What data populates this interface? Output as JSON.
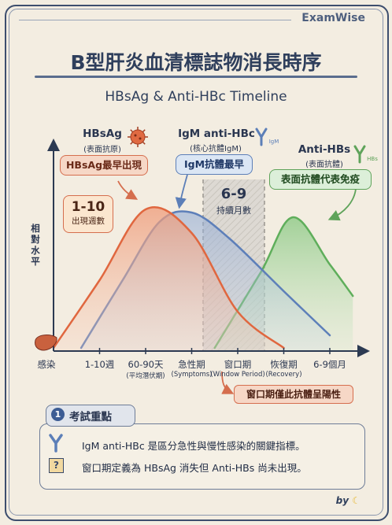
{
  "brand": "ExamWise",
  "title": "B型肝炎血清標誌物消長時序",
  "subtitle": "HBsAg & Anti-HBc Timeline",
  "markers": {
    "hbsag": {
      "name": "HBsAg",
      "desc": "(表面抗原)",
      "callout": "HBsAg最早出現"
    },
    "igm": {
      "name": "IgM anti-HBc",
      "desc": "(核心抗體IgM)",
      "callout": "IgM抗體最早",
      "icon_tag": "IgM"
    },
    "antihbs": {
      "name": "Anti-HBs",
      "desc": "(表面抗體)",
      "callout": "表面抗體代表免疫",
      "icon_tag": "HBs"
    }
  },
  "onset": {
    "range": "1-10",
    "text": "出現週數"
  },
  "window_duration": {
    "range": "6-9",
    "text": "持續月數"
  },
  "ylabel": "相對水平",
  "xticks": [
    {
      "label": "感染",
      "sub": ""
    },
    {
      "label": "1-10週",
      "sub": ""
    },
    {
      "label": "60-90天",
      "sub": "(平均潛伏期)"
    },
    {
      "label": "急性期",
      "sub": "(Symptoms)"
    },
    {
      "label": "窗口期",
      "sub": "(Window Period)"
    },
    {
      "label": "恢復期",
      "sub": "(Recovery)"
    },
    {
      "label": "6-9個月",
      "sub": ""
    }
  ],
  "window_note": "窗口期僅此抗體呈陽性",
  "exam": {
    "number": "1",
    "title": "考試重點",
    "points": [
      "IgM anti-HBc 是區分急性與慢性感染的關鍵指標。",
      "窗口期定義為 HBsAg 消失但 Anti-HBs 尚未出現。"
    ],
    "q_mark": "?"
  },
  "byline": "by",
  "colors": {
    "hbsag": "#e0673f",
    "igm": "#5d7fb9",
    "antihbs": "#5fae5b",
    "ink": "#2c3a52"
  },
  "chart_data": {
    "type": "area",
    "ylabel": "相對水平",
    "x_categories": [
      "感染",
      "1-10週",
      "60-90天",
      "急性期",
      "窗口期",
      "恢復期",
      "6-9個月"
    ],
    "series": [
      {
        "name": "HBsAg",
        "x": [
          0,
          1,
          2,
          3,
          4,
          5
        ],
        "y": [
          0.02,
          0.45,
          0.9,
          0.75,
          0.25,
          0.02
        ]
      },
      {
        "name": "IgM anti-HBc",
        "x": [
          0.6,
          1.5,
          2.3,
          3.0,
          3.8,
          5.0,
          6.0
        ],
        "y": [
          0.02,
          0.45,
          0.82,
          0.88,
          0.72,
          0.38,
          0.1
        ]
      },
      {
        "name": "Anti-HBs",
        "x": [
          3.5,
          4.5,
          5.2,
          6.0,
          6.5
        ],
        "y": [
          0.02,
          0.5,
          0.85,
          0.55,
          0.35
        ]
      }
    ],
    "highlight_region": {
      "label": "窗口期",
      "from": 3.55,
      "to": 4.55
    }
  }
}
